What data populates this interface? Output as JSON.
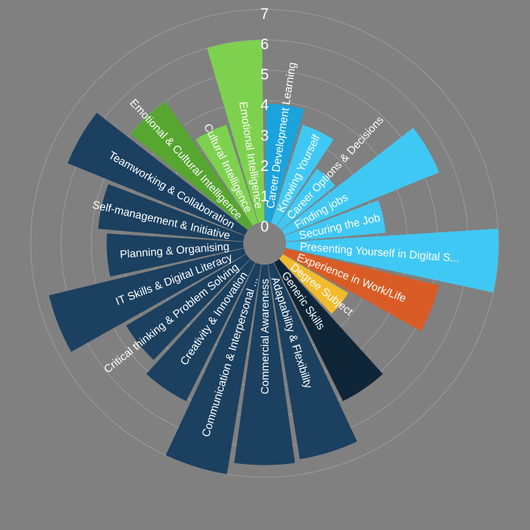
{
  "chart_data": {
    "type": "radial-bar",
    "title": "",
    "rlim": [
      0,
      7
    ],
    "ticks": [
      "0",
      "1",
      "2",
      "3",
      "4",
      "5",
      "6",
      "7"
    ],
    "grid": true,
    "bars": [
      {
        "label": "Career Development Learning",
        "value": 3.9,
        "color": "#1aa3dc"
      },
      {
        "label": "Knowing Yourself",
        "value": 3.4,
        "color": "#40c8f4"
      },
      {
        "label": "Career Options & Decisions",
        "value": 2.3,
        "color": "#40c8f4"
      },
      {
        "label": "Finding jobs",
        "value": 5.5,
        "color": "#40c8f4"
      },
      {
        "label": "Securing the Job",
        "value": 3.3,
        "color": "#40c8f4"
      },
      {
        "label": "Presenting Yourself in Digital S...",
        "value": 7.0,
        "color": "#40c8f4"
      },
      {
        "label": "Experience in Work/Life",
        "value": 5.2,
        "color": "#d95c26"
      },
      {
        "label": "Degree Subject",
        "value": 2.5,
        "color": "#f2bb2c"
      },
      {
        "label": "Generic Skills",
        "value": 5.1,
        "color": "#0f2538"
      },
      {
        "label": "Adaptability & Flexibility",
        "value": 6.5,
        "color": "#1b4060"
      },
      {
        "label": "Commercial Awareness",
        "value": 6.6,
        "color": "#1b4060"
      },
      {
        "label": "Communication & Interpersonal ...",
        "value": 7.0,
        "color": "#1b4060"
      },
      {
        "label": "Creativity & Innovation",
        "value": 5.1,
        "color": "#1b4060"
      },
      {
        "label": "Critical thinking & Problem Solving",
        "value": 4.6,
        "color": "#1b4060"
      },
      {
        "label": "IT Skills & Digital Literacy",
        "value": 6.6,
        "color": "#1b4060"
      },
      {
        "label": "Planning & Organising",
        "value": 4.5,
        "color": "#1b4060"
      },
      {
        "label": "Self-management & Initiative",
        "value": 4.8,
        "color": "#1b4060"
      },
      {
        "label": "Teamworking & Collaboration",
        "value": 6.3,
        "color": "#1b4060"
      },
      {
        "label": "Emotional & Cultural Intelligence",
        "value": 5.0,
        "color": "#56a630"
      },
      {
        "label": "Cultural Intelligence",
        "value": 3.4,
        "color": "#7dd14f"
      },
      {
        "label": "Emotional Intelligence",
        "value": 6.0,
        "color": "#7dd14f"
      }
    ]
  }
}
